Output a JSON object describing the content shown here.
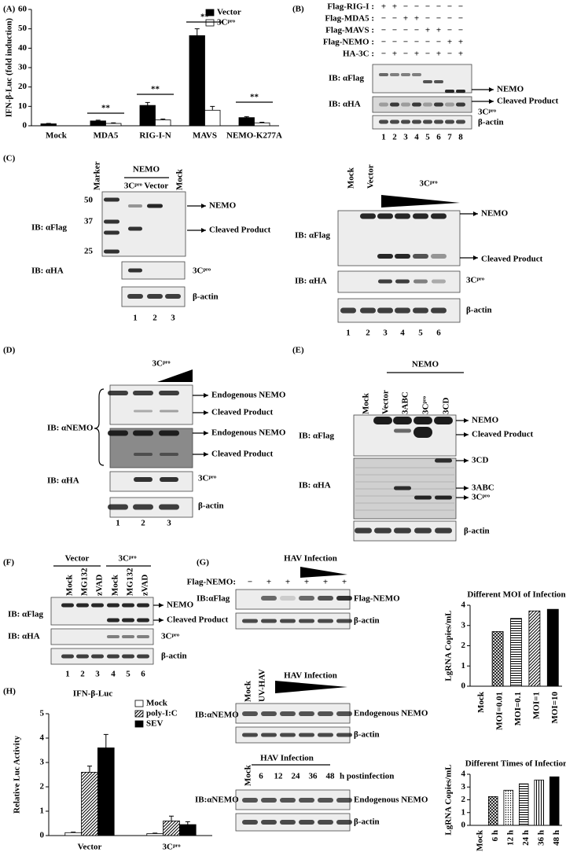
{
  "panel_labels": [
    "(A)",
    "(B)",
    "(C)",
    "(D)",
    "(E)",
    "(F)",
    "(G)",
    "(H)"
  ],
  "chart_data": [
    {
      "type": "bar",
      "y_label": "IFN-β-Luc (fold induction)",
      "categories": [
        "Mock",
        "MDA5",
        "RIG-I-N",
        "MAVS",
        "NEMO-K277A"
      ],
      "series": [
        {
          "name": "Vector",
          "color": "#000000",
          "values": [
            1,
            2.5,
            10.5,
            46.5,
            4.2
          ],
          "errors": [
            0.2,
            0.4,
            1.5,
            3.5,
            0.5
          ]
        },
        {
          "name": "3Cᵖʳᵒ",
          "color": "#ffffff",
          "values": [
            null,
            1.2,
            3,
            8,
            1.5
          ],
          "errors": [
            null,
            0.3,
            0.5,
            2,
            0.3
          ]
        }
      ],
      "ylim": [
        0,
        60
      ],
      "yticks": [
        0,
        10,
        20,
        30,
        40,
        50,
        60
      ],
      "annotations": [
        "**",
        "**",
        "**",
        "**"
      ],
      "legend": "top-right"
    },
    {
      "type": "bar",
      "title": "Different MOI of  Infection",
      "y_label": "LgRNA Copies/mL",
      "categories": [
        "Mock",
        "MOI=0.01",
        "MOI=0.1",
        "MOI=1",
        "MOI=10"
      ],
      "values": [
        0,
        2.7,
        3.35,
        3.72,
        3.8
      ],
      "color": "#000000",
      "patterns": [
        "solid",
        "crosshatch",
        "hlines",
        "diagonal",
        "solid"
      ],
      "ylim": [
        0,
        4
      ],
      "yticks": [
        0,
        1,
        2,
        3,
        4
      ]
    },
    {
      "type": "bar",
      "title": "Different Times of  Infection",
      "y_label": "LgRNA Copies/mL",
      "categories": [
        "Mock",
        "6 h",
        "12 h",
        "24 h",
        "36 h",
        "48 h"
      ],
      "values": [
        0,
        2.25,
        2.75,
        3.25,
        3.55,
        3.8
      ],
      "color": "#000000",
      "patterns": [
        "solid",
        "crosshatch",
        "dots",
        "hlines",
        "vlines",
        "solid"
      ],
      "ylim": [
        0,
        4
      ],
      "yticks": [
        0,
        1,
        2,
        3,
        4
      ]
    },
    {
      "type": "bar",
      "title": "IFN-β-Luc",
      "y_label": "Relative Luc Activity",
      "categories": [
        "Vector",
        "3Cᵖʳᵒ"
      ],
      "series": [
        {
          "name": "Mock",
          "color": "#ffffff",
          "values": [
            0.12,
            0.08
          ],
          "errors": [
            0.02,
            0.02
          ]
        },
        {
          "name": "poly-I:C",
          "color": "#000000",
          "pattern": "diagonal",
          "values": [
            2.6,
            0.6
          ],
          "errors": [
            0.25,
            0.2
          ]
        },
        {
          "name": "SEV",
          "color": "#000000",
          "values": [
            3.6,
            0.45
          ],
          "errors": [
            0.55,
            0.12
          ]
        }
      ],
      "ylim": [
        0,
        5
      ],
      "yticks": [
        0,
        1,
        2,
        3,
        4,
        5
      ],
      "legend": "top-right"
    }
  ],
  "B": {
    "rows": [
      {
        "label": "Flag-RIG-I :",
        "signs": [
          "+",
          "+",
          "−",
          "−",
          "−",
          "−",
          "−",
          "−"
        ]
      },
      {
        "label": "Flag-MDA5 :",
        "signs": [
          "−",
          "−",
          "+",
          "+",
          "−",
          "−",
          "−",
          "−"
        ]
      },
      {
        "label": "Flag-MAVS :",
        "signs": [
          "−",
          "−",
          "−",
          "−",
          "+",
          "+",
          "−",
          "−"
        ]
      },
      {
        "label": "Flag-NEMO :",
        "signs": [
          "−",
          "−",
          "−",
          "−",
          "−",
          "−",
          "+",
          "+"
        ]
      },
      {
        "label": "HA-3C :",
        "signs": [
          "−",
          "+",
          "−",
          "+",
          "−",
          "+",
          "−",
          "+"
        ]
      }
    ],
    "ib": [
      "IB: αFlag",
      "IB: αHA"
    ],
    "right": [
      "NEMO",
      "Cleaved Product",
      "3Cᵖʳᵒ",
      "β-actin"
    ],
    "lanes": [
      "1",
      "2",
      "3",
      "4",
      "5",
      "6",
      "7",
      "8"
    ]
  },
  "C": {
    "left": {
      "top": [
        "Marker",
        "NEMO",
        "3Cᵖʳᵒ Vector",
        "Mock"
      ],
      "markers": [
        "50",
        "37",
        "25"
      ],
      "ib": [
        "IB: αFlag",
        "IB: αHA"
      ],
      "right": [
        "NEMO",
        "Cleaved Product",
        "3Cᵖʳᵒ",
        "β-actin"
      ],
      "lanes": [
        "1",
        "2",
        "3"
      ]
    },
    "right": {
      "top": [
        "Mock",
        "Vector",
        "3Cᵖʳᵒ"
      ],
      "ib": [
        "IB: αFlag",
        "IB: αHA"
      ],
      "right": [
        "NEMO",
        "Cleaved Product",
        "3Cᵖʳᵒ",
        "β-actin"
      ],
      "lanes": [
        "1",
        "2",
        "3",
        "4",
        "5",
        "6"
      ]
    }
  },
  "D": {
    "top": "3Cᵖʳᵒ",
    "ib": [
      "IB: αNEMO",
      "IB: αHA"
    ],
    "right": [
      "Endogenous NEMO",
      "Cleaved Product",
      "Endogenous NEMO",
      "Cleaved Product",
      "3Cᵖʳᵒ",
      "β-actin"
    ],
    "lanes": [
      "1",
      "2",
      "3"
    ]
  },
  "E": {
    "group": "NEMO",
    "top": [
      "Mock",
      "Vector",
      "3ABC",
      "3Cᵖʳᵒ",
      "3CD"
    ],
    "ib": [
      "IB: αFlag",
      "IB: αHA"
    ],
    "right": [
      "NEMO",
      "Cleaved Product",
      "3CD",
      "3ABC",
      "3Cᵖʳᵒ",
      "β-actin"
    ]
  },
  "F": {
    "groups": [
      "Vector",
      "3Cᵖʳᵒ"
    ],
    "top": [
      "Mock",
      "MG132",
      "zVAD",
      "Mock",
      "MG132",
      "zVAD"
    ],
    "ib": [
      "IB: αFlag",
      "IB: αHA"
    ],
    "right": [
      "NEMO",
      "Cleaved Product",
      "3Cᵖʳᵒ",
      "β-actin"
    ],
    "lanes": [
      "1",
      "2",
      "3",
      "4",
      "5",
      "6"
    ]
  },
  "G": {
    "blot1": {
      "header": "HAV Infection",
      "row": "Flag-NEMO:",
      "signs": [
        "−",
        "+",
        "+",
        "+",
        "+",
        "+"
      ],
      "ib": "IB:αFlag",
      "right": [
        "Flag-NEMO",
        "β-actin"
      ]
    },
    "blot2": {
      "top": [
        "Mock",
        "UV-HAV"
      ],
      "header": "HAV Infection",
      "ib": "IB:αNEMO",
      "right": [
        "Endogenous NEMO",
        "β-actin"
      ]
    },
    "blot3": {
      "header": "HAV Infection",
      "top": "Mock",
      "times": [
        "6",
        "12",
        "24",
        "36",
        "48"
      ],
      "unit": "h postinfection",
      "ib": "IB:αNEMO",
      "right": [
        "Endogenous NEMO",
        "β-actin"
      ]
    }
  }
}
